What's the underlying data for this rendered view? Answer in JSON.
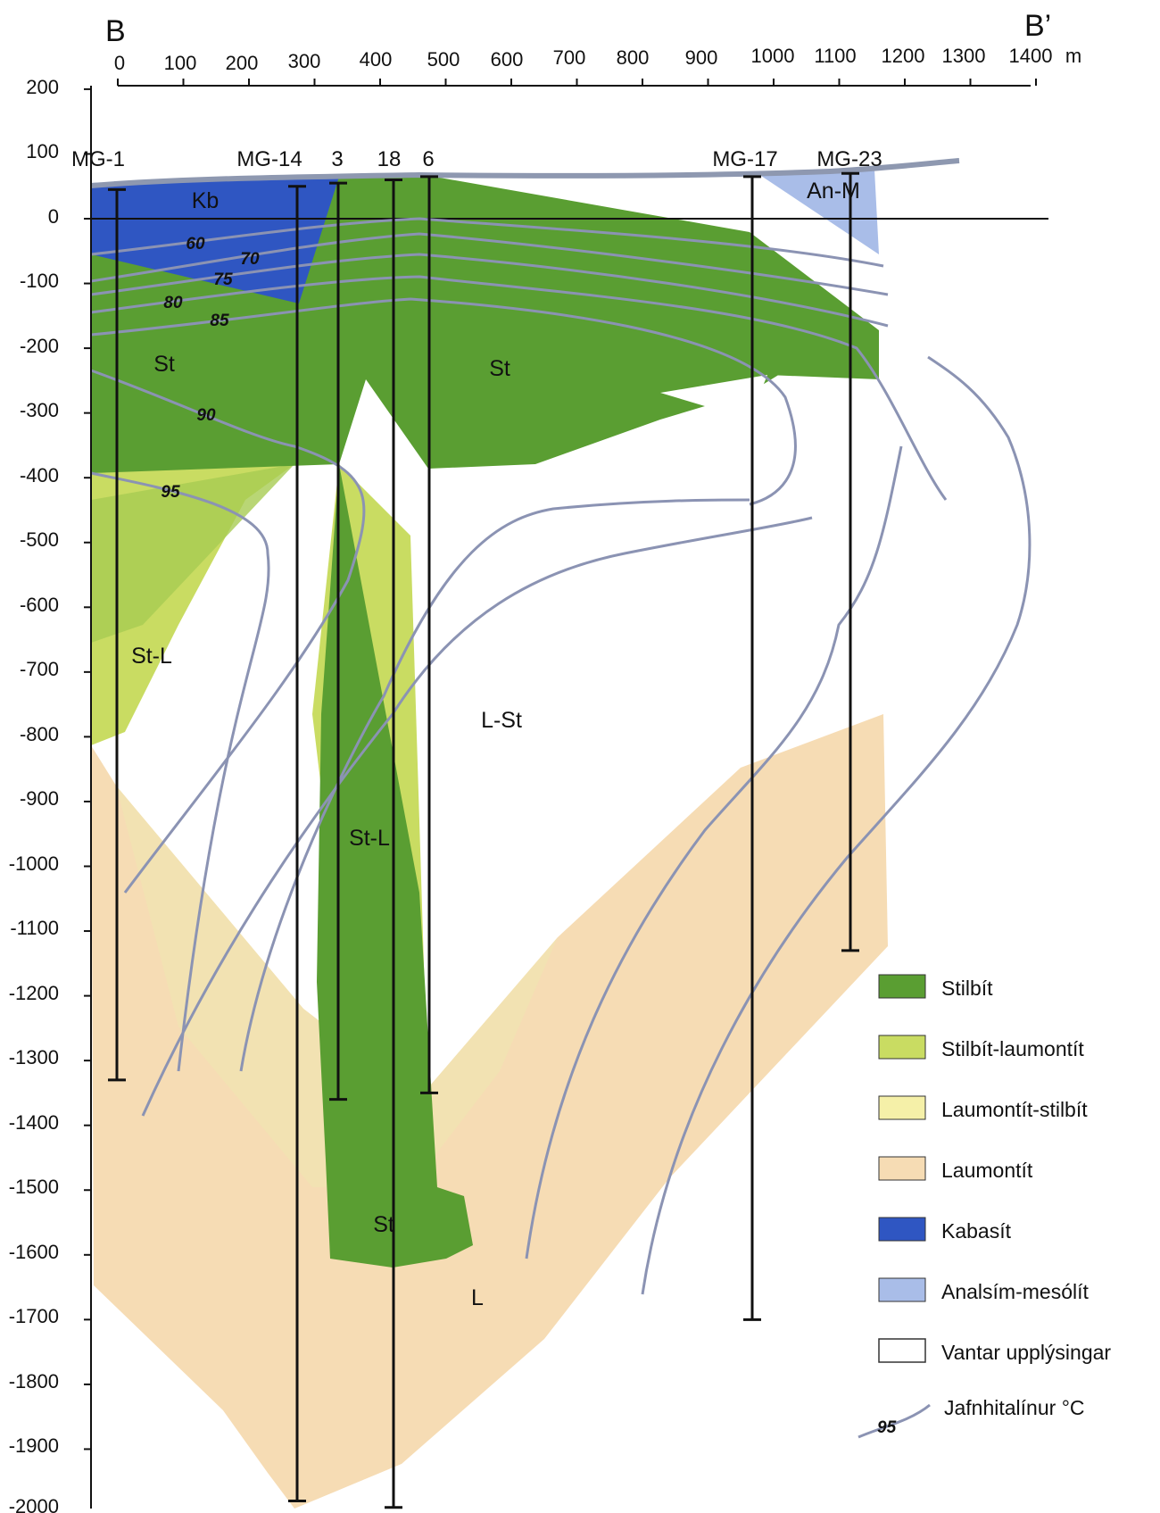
{
  "section": {
    "start_label": "B",
    "end_label": "B’",
    "distance_unit": "m",
    "distance_ticks": [
      "0",
      "100",
      "200",
      "300",
      "400",
      "500",
      "600",
      "700",
      "800",
      "900",
      "1000",
      "1100",
      "1200",
      "1300",
      "1400"
    ],
    "depth_ticks": [
      "200",
      "100",
      "0",
      "-100",
      "-200",
      "-300",
      "-400",
      "-500",
      "-600",
      "-700",
      "-800",
      "-900",
      "-1000",
      "-1100",
      "-1200",
      "-1300",
      "-1400",
      "-1500",
      "-1600",
      "-1700",
      "-1800",
      "-1900",
      "-2000"
    ]
  },
  "wells": [
    {
      "name": "MG-1",
      "top": 45,
      "bottom": -1330
    },
    {
      "name": "MG-14",
      "top": 50,
      "bottom": -1980
    },
    {
      "name": "3",
      "top": 55,
      "bottom": -1360
    },
    {
      "name": "18",
      "top": 60,
      "bottom": -1990
    },
    {
      "name": "6",
      "top": 65,
      "bottom": -1350
    },
    {
      "name": "MG-17",
      "top": 65,
      "bottom": -1700
    },
    {
      "name": "MG-23",
      "top": 70,
      "bottom": -1130
    }
  ],
  "zone_labels": {
    "kb": "Kb",
    "anm": "An-M",
    "st_left": "St",
    "st_mid": "St",
    "stl_left": "St-L",
    "lst": "L-St",
    "stl_mid": "St-L",
    "st_bottom": "St",
    "l": "L"
  },
  "isotherms": [
    "60",
    "70",
    "75",
    "80",
    "85",
    "90",
    "95"
  ],
  "legend": {
    "items": [
      {
        "label": "Stilbít",
        "color": "#5a9e32"
      },
      {
        "label": "Stilbít-laumontít",
        "color": "#c9dc62"
      },
      {
        "label": "Laumontít-stilbít",
        "color": "#f5f0a8"
      },
      {
        "label": "Laumontít",
        "color": "#f6dcb4"
      },
      {
        "label": "Kabasít",
        "color": "#2f56c2"
      },
      {
        "label": "Analsím-mesólít",
        "color": "#a9bde8"
      },
      {
        "label": "Vantar upplýsingar",
        "color": "#ffffff"
      }
    ],
    "isotherm_sample": "95",
    "isotherm_label": "Jafnhitalínur °C"
  }
}
